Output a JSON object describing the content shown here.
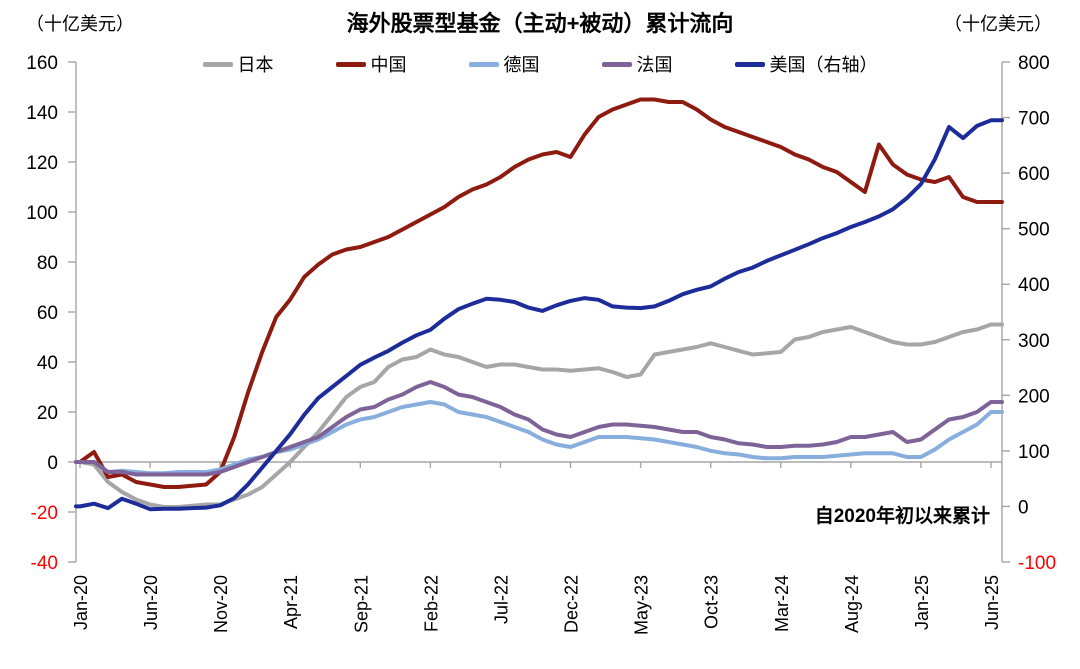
{
  "header": {
    "title": "海外股票型基金（主动+被动）累计流向",
    "unit_left": "（十亿美元）",
    "unit_right": "（十亿美元）"
  },
  "annotation": "自2020年初以来累计",
  "colors": {
    "axis_line": "#a6a6a6",
    "tick_label": "#000000",
    "negative_tick_label": "#ff0000",
    "background": "#ffffff"
  },
  "chart_data": {
    "type": "line",
    "title": "海外股票型基金（主动+被动）累计流向",
    "subtitle_note": "自2020年初以来累计",
    "legend_position": "top",
    "grid": "zero-line-only",
    "x_axis": {
      "unit": "month",
      "start": "Jan-20",
      "end": "Jun-25",
      "months_total": 66,
      "tick_every_months": 5,
      "tick_labels": [
        "Jan-20",
        "Jun-20",
        "Nov-20",
        "Apr-21",
        "Sep-21",
        "Feb-22",
        "Jul-22",
        "Dec-22",
        "May-23",
        "Oct-23",
        "Mar-24",
        "Aug-24",
        "Jan-25",
        "Jun-25"
      ]
    },
    "y_left": {
      "label": "（十亿美元）",
      "min": -40,
      "max": 160,
      "step": 20,
      "ticks": [
        160,
        140,
        120,
        100,
        80,
        60,
        40,
        20,
        0,
        -20,
        -40
      ]
    },
    "y_right": {
      "label": "（十亿美元）",
      "min": -100,
      "max": 800,
      "step": 100,
      "ticks": [
        800,
        700,
        600,
        500,
        400,
        300,
        200,
        100,
        0,
        -100
      ]
    },
    "series": [
      {
        "name": "日本",
        "id": "japan",
        "axis": "left",
        "color": "#a6a6a6",
        "values": [
          0,
          -1,
          -8,
          -12,
          -15,
          -17,
          -18,
          -18,
          -17.5,
          -17,
          -17,
          -15,
          -13,
          -10,
          -5,
          0,
          6,
          12,
          19,
          26,
          30,
          32,
          38,
          41,
          42,
          45,
          43,
          42,
          40,
          38,
          39,
          39,
          38,
          37,
          37,
          36.5,
          37,
          37.5,
          36,
          34,
          35,
          43,
          44,
          45,
          46,
          47.5,
          46,
          44.5,
          43,
          43.5,
          44,
          49,
          50,
          52,
          53,
          54,
          52,
          50,
          48,
          47,
          47,
          48,
          50,
          52,
          53,
          55
        ]
      },
      {
        "name": "中国",
        "id": "china",
        "axis": "left",
        "color": "#8e1b10",
        "values": [
          0,
          4,
          -6,
          -5,
          -8,
          -9,
          -10,
          -10,
          -9.5,
          -9,
          -4,
          10,
          28,
          44,
          58,
          65,
          74,
          79,
          83,
          85,
          86,
          88,
          90,
          93,
          96,
          99,
          102,
          106,
          109,
          111,
          114,
          118,
          121,
          123,
          124,
          122,
          131,
          138,
          141,
          143,
          145,
          145,
          144,
          144,
          141,
          137,
          134,
          132,
          130,
          128,
          126,
          123,
          121,
          118,
          116,
          112,
          108,
          127,
          119,
          115,
          113,
          112,
          114,
          106,
          104,
          104
        ]
      },
      {
        "name": "德国",
        "id": "germany",
        "axis": "left",
        "color": "#87aedc",
        "values": [
          0,
          0,
          -4,
          -3.5,
          -4,
          -4.5,
          -4.5,
          -4,
          -4,
          -4,
          -3,
          -1,
          1,
          2,
          4,
          5,
          7,
          9,
          12,
          15,
          17,
          18,
          20,
          22,
          23,
          24,
          23,
          20,
          19,
          18,
          16,
          14,
          12,
          9,
          7,
          6,
          8,
          10,
          10,
          10,
          9.5,
          9,
          8,
          7,
          6,
          4.5,
          3.5,
          3,
          2,
          1.5,
          1.5,
          2,
          2,
          2,
          2.5,
          3,
          3.5,
          3.5,
          3.5,
          2,
          2,
          5,
          9,
          12,
          15,
          20
        ]
      },
      {
        "name": "法国",
        "id": "france",
        "axis": "left",
        "color": "#7d6398",
        "values": [
          0,
          0,
          -4,
          -4,
          -5,
          -5,
          -5,
          -5,
          -5,
          -5,
          -4,
          -2,
          0,
          2,
          4,
          6,
          8,
          10,
          14,
          18,
          21,
          22,
          25,
          27,
          30,
          32,
          30,
          27,
          26,
          24,
          22,
          19,
          17,
          13,
          11,
          10,
          12,
          14,
          15,
          15,
          14.5,
          14,
          13,
          12,
          12,
          10,
          9,
          7.5,
          7,
          6,
          6,
          6.5,
          6.5,
          7,
          8,
          10,
          10,
          11,
          12,
          8,
          9,
          13,
          17,
          18,
          20,
          24
        ]
      },
      {
        "name": "美国（右轴）",
        "id": "us",
        "axis": "right",
        "color": "#1c2c99",
        "values": [
          0,
          5,
          -3,
          14,
          5,
          -5,
          -4,
          -4,
          -3,
          -2,
          2,
          15,
          40,
          70,
          100,
          130,
          165,
          195,
          215,
          235,
          255,
          268,
          280,
          295,
          308,
          318,
          338,
          355,
          365,
          374,
          372,
          368,
          358,
          352,
          362,
          370,
          375,
          372,
          360,
          358,
          357,
          360,
          370,
          382,
          390,
          396,
          410,
          422,
          430,
          442,
          452,
          462,
          472,
          483,
          492,
          503,
          512,
          522,
          535,
          555,
          580,
          625,
          683,
          663,
          685,
          695
        ]
      }
    ]
  }
}
